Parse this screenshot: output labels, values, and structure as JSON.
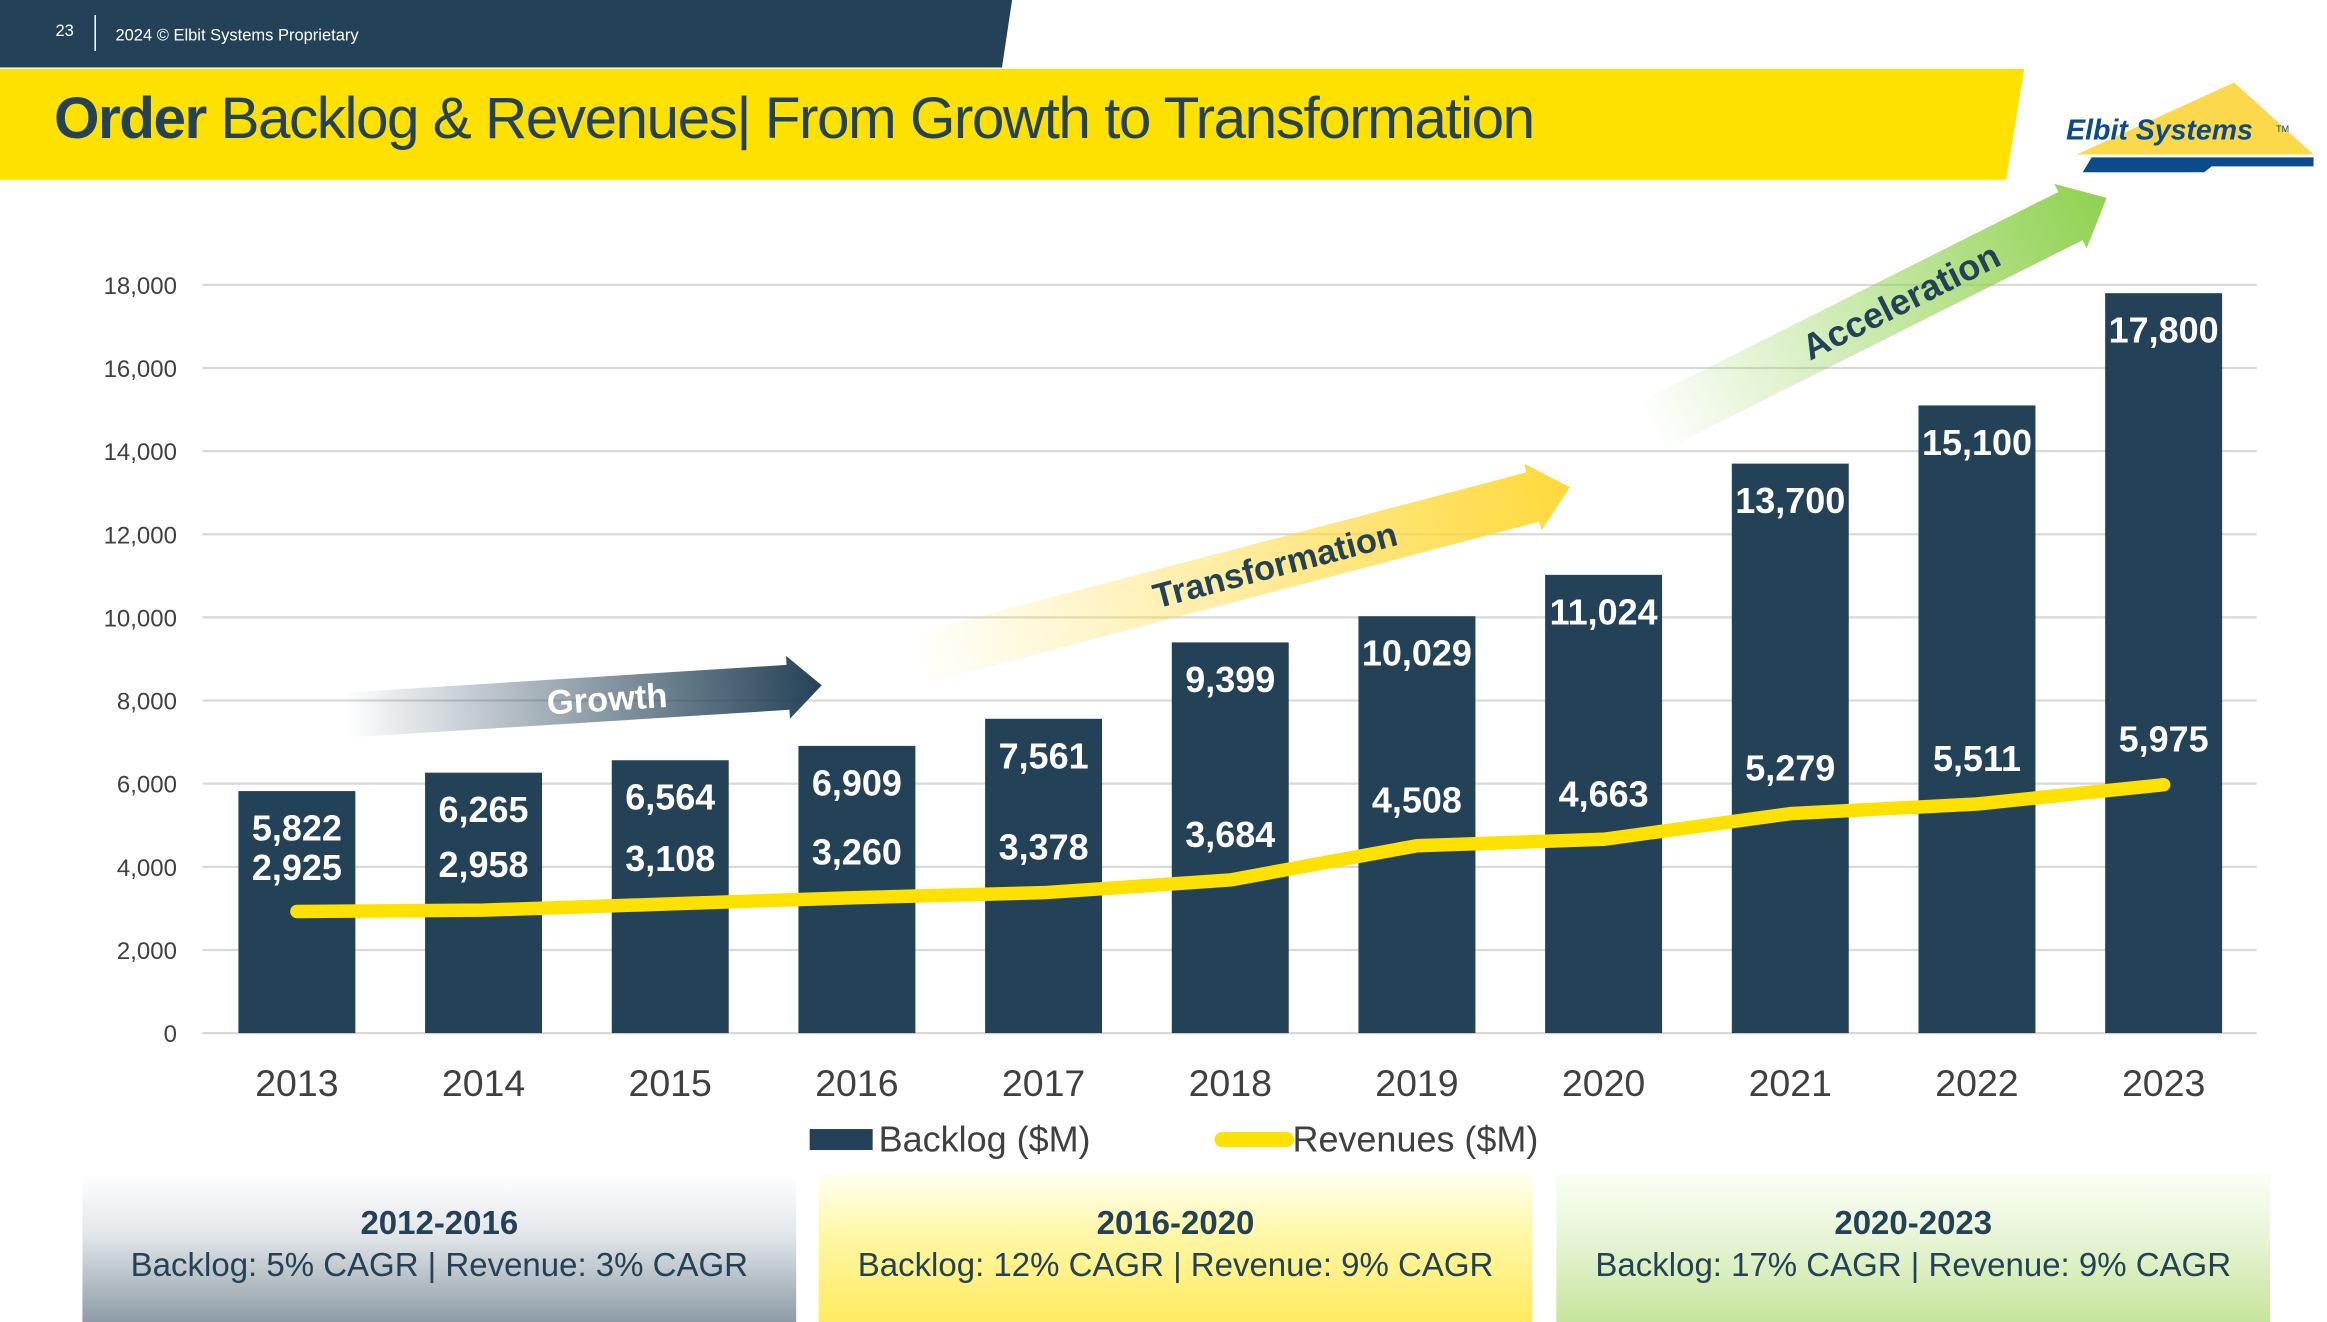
{
  "header": {
    "page_number": "23",
    "copyright": "2024 © Elbit Systems Proprietary",
    "title_bold": "Order",
    "title_rest": " Backlog & Revenues| From Growth to Transformation",
    "logo_text": "Elbit Systems™"
  },
  "colors": {
    "backlog": "#244257",
    "revenue": "#ffe100",
    "growth_arrow": "#244257",
    "transformation_arrow": "#ffd93a",
    "acceleration_arrow": "#8fd14f"
  },
  "chart_data": {
    "type": "bar+line",
    "categories": [
      "2013",
      "2014",
      "2015",
      "2016",
      "2017",
      "2018",
      "2019",
      "2020",
      "2021",
      "2022",
      "2023"
    ],
    "series": [
      {
        "name": "Backlog ($M)",
        "type": "bar",
        "values": [
          5822,
          6265,
          6564,
          6909,
          7561,
          9399,
          10029,
          11024,
          13700,
          15100,
          17800
        ],
        "labels": [
          "5,822",
          "6,265",
          "6,564",
          "6,909",
          "7,561",
          "9,399",
          "10,029",
          "11,024",
          "13,700",
          "15,100",
          "17,800"
        ]
      },
      {
        "name": "Revenues ($M)",
        "type": "line",
        "values": [
          2925,
          2958,
          3108,
          3260,
          3378,
          3684,
          4508,
          4663,
          5279,
          5511,
          5975
        ],
        "labels": [
          "2,925",
          "2,958",
          "3,108",
          "3,260",
          "3,378",
          "3,684",
          "4,508",
          "4,663",
          "5,279",
          "5,511",
          "5,975"
        ]
      }
    ],
    "ylim": [
      0,
      18000
    ],
    "yticks": [
      "0",
      "2,000",
      "4,000",
      "6,000",
      "8,000",
      "10,000",
      "12,000",
      "14,000",
      "16,000",
      "18,000"
    ],
    "grid": true,
    "legend": "bottom",
    "annotations": [
      "Growth",
      "Transformation",
      "Acceleration"
    ]
  },
  "periods": [
    {
      "range": "2012-2016",
      "text": "Backlog: 5% CAGR | Revenue: 3% CAGR"
    },
    {
      "range": "2016-2020",
      "text": "Backlog: 12% CAGR | Revenue: 9% CAGR"
    },
    {
      "range": "2020-2023",
      "text": "Backlog: 17% CAGR | Revenue: 9% CAGR"
    }
  ]
}
